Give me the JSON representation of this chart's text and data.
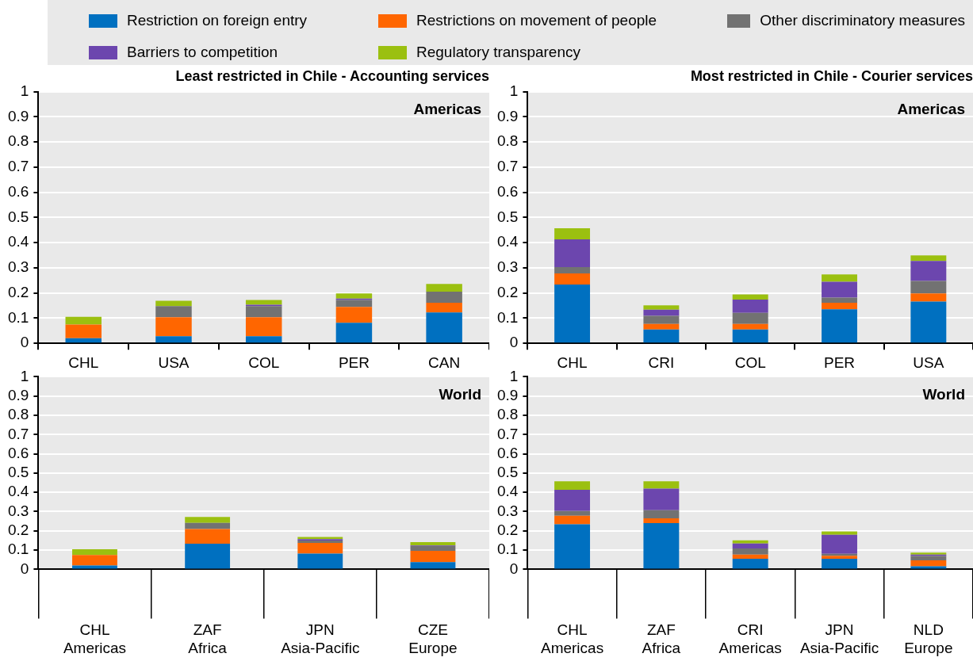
{
  "chart_data": [
    {
      "type": "bar",
      "stacked": true,
      "title": "Least restricted in Chile - Accounting services",
      "annotations": [
        "Americas"
      ],
      "legend": "top",
      "grid": "y",
      "ylim": [
        0,
        1
      ],
      "yticks": [
        0,
        0.1,
        0.2,
        0.3,
        0.4,
        0.5,
        0.6,
        0.7,
        0.8,
        0.9,
        1
      ],
      "categories": [
        "CHL",
        "USA",
        "COL",
        "PER",
        "CAN"
      ],
      "series": [
        {
          "name": "Restriction on foreign entry",
          "color": "#0070c0",
          "values": [
            0.02,
            0.028,
            0.028,
            0.082,
            0.123
          ]
        },
        {
          "name": "Restrictions on movement of people",
          "color": "#ff6600",
          "values": [
            0.055,
            0.076,
            0.076,
            0.063,
            0.038
          ]
        },
        {
          "name": "Other discriminatory measures",
          "color": "#727272",
          "values": [
            0,
            0.044,
            0.044,
            0.027,
            0.044
          ]
        },
        {
          "name": "Barriers to competition",
          "color": "#6c46ae",
          "values": [
            0,
            0,
            0.005,
            0.006,
            0
          ]
        },
        {
          "name": "Regulatory transparency",
          "color": "#9bc010",
          "values": [
            0.03,
            0.021,
            0.019,
            0.02,
            0.031
          ]
        }
      ]
    },
    {
      "type": "bar",
      "stacked": true,
      "title": "Most restricted in Chile - Courier services",
      "annotations": [
        "Americas"
      ],
      "grid": "y",
      "ylim": [
        0,
        1
      ],
      "yticks": [
        0,
        0.1,
        0.2,
        0.3,
        0.4,
        0.5,
        0.6,
        0.7,
        0.8,
        0.9,
        1
      ],
      "categories": [
        "CHL",
        "CRI",
        "COL",
        "PER",
        "USA"
      ],
      "series": [
        {
          "color": "#0070c0",
          "values": [
            0.234,
            0.055,
            0.055,
            0.135,
            0.166
          ]
        },
        {
          "color": "#ff6600",
          "values": [
            0.044,
            0.022,
            0.022,
            0.026,
            0.032
          ]
        },
        {
          "color": "#727272",
          "values": [
            0.025,
            0.032,
            0.044,
            0.021,
            0.05
          ]
        },
        {
          "color": "#6c46ae",
          "values": [
            0.11,
            0.025,
            0.053,
            0.063,
            0.079
          ]
        },
        {
          "color": "#9bc010",
          "values": [
            0.044,
            0.017,
            0.02,
            0.029,
            0.022
          ]
        }
      ]
    },
    {
      "type": "bar",
      "stacked": true,
      "annotations": [
        "World"
      ],
      "grid": "y",
      "ylim": [
        0,
        1
      ],
      "yticks": [
        0,
        0.1,
        0.2,
        0.3,
        0.4,
        0.5,
        0.6,
        0.7,
        0.8,
        0.9,
        1
      ],
      "categories": [
        "CHL\nAmericas",
        "ZAF\nAfrica",
        "JPN\nAsia-Pacific",
        "CZE\nEurope"
      ],
      "series": [
        {
          "color": "#0070c0",
          "values": [
            0.02,
            0.133,
            0.082,
            0.038
          ]
        },
        {
          "color": "#ff6600",
          "values": [
            0.055,
            0.076,
            0.055,
            0.058
          ]
        },
        {
          "color": "#727272",
          "values": [
            0,
            0.032,
            0.013,
            0.025
          ]
        },
        {
          "color": "#6c46ae",
          "values": [
            0,
            0,
            0.007,
            0.003
          ]
        },
        {
          "color": "#9bc010",
          "values": [
            0.03,
            0.031,
            0.011,
            0.018
          ]
        }
      ]
    },
    {
      "type": "bar",
      "stacked": true,
      "annotations": [
        "World"
      ],
      "grid": "y",
      "ylim": [
        0,
        1
      ],
      "yticks": [
        0,
        0.1,
        0.2,
        0.3,
        0.4,
        0.5,
        0.6,
        0.7,
        0.8,
        0.9,
        1
      ],
      "categories": [
        "CHL\nAmericas",
        "ZAF\nAfrica",
        "CRI\nAmericas",
        "JPN\nAsia-Pacific",
        "NLD\nEurope"
      ],
      "series": [
        {
          "color": "#0070c0",
          "values": [
            0.234,
            0.24,
            0.055,
            0.055,
            0.016
          ]
        },
        {
          "color": "#ff6600",
          "values": [
            0.044,
            0.025,
            0.022,
            0.016,
            0.031
          ]
        },
        {
          "color": "#727272",
          "values": [
            0.025,
            0.042,
            0.032,
            0.01,
            0.023
          ]
        },
        {
          "color": "#6c46ae",
          "values": [
            0.11,
            0.112,
            0.025,
            0.099,
            0.007
          ]
        },
        {
          "color": "#9bc010",
          "values": [
            0.044,
            0.038,
            0.017,
            0.017,
            0.01
          ]
        }
      ]
    }
  ]
}
